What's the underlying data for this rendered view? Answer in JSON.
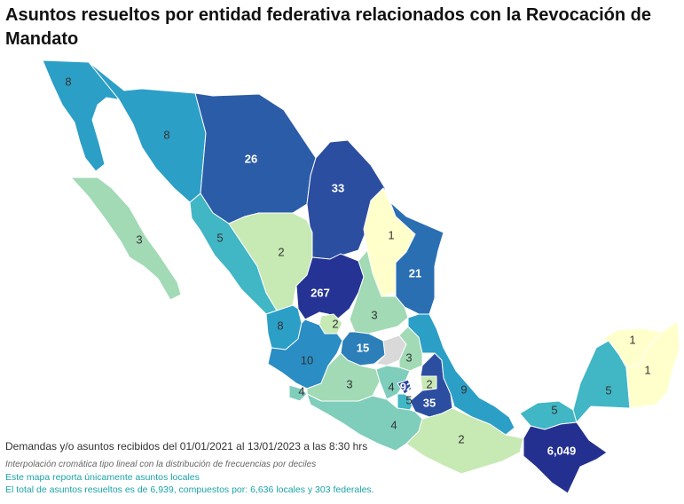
{
  "title": "Asuntos resueltos por entidad federativa relacionados con la Revocación de Mandato",
  "footer": {
    "period": "Demandas y/o asuntos recibidos del 01/01/2021 al 13/01/2023 a las 8:30 hrs",
    "method": "Interpolación cromática tipo lineal con la distribución de frecuencias por deciles",
    "scope": "Este mapa reporta únicamente asuntos locales",
    "total": "El total de asuntos resueltos es de 6,939, compuestos por: 6,636 locales y 303 federales."
  },
  "colors": {
    "c1": "#ffffcc",
    "c2": "#c7e9b4",
    "c3": "#a1dab4",
    "c4": "#7fcdbb",
    "c5": "#41b6c4",
    "c8": "#2c9fc7",
    "c10": "#2a8dc4",
    "c15": "#2c7fb8",
    "c21": "#2b6fb3",
    "c26": "#2b5ca8",
    "c33": "#2c4ea0",
    "c92": "#2a44a0",
    "c267": "#253494",
    "c6049": "#24308f",
    "nodata": "#d9d9d9"
  },
  "states": [
    {
      "id": "baja-california",
      "value": "8"
    },
    {
      "id": "sonora",
      "value": "8"
    },
    {
      "id": "chihuahua",
      "value": "26"
    },
    {
      "id": "coahuila",
      "value": "33"
    },
    {
      "id": "nuevo-leon",
      "value": "1"
    },
    {
      "id": "baja-california-sur",
      "value": "3"
    },
    {
      "id": "sinaloa",
      "value": "5"
    },
    {
      "id": "durango",
      "value": "2"
    },
    {
      "id": "tamaulipas",
      "value": "21"
    },
    {
      "id": "zacatecas",
      "value": "267"
    },
    {
      "id": "aguascalientes",
      "value": "2"
    },
    {
      "id": "san-luis-potosi",
      "value": "3"
    },
    {
      "id": "nayarit",
      "value": "8"
    },
    {
      "id": "jalisco",
      "value": "10"
    },
    {
      "id": "guanajuato",
      "value": "15"
    },
    {
      "id": "hidalgo",
      "value": "3"
    },
    {
      "id": "colima",
      "value": "4"
    },
    {
      "id": "michoacan",
      "value": "3"
    },
    {
      "id": "estado-de-mexico",
      "value": "4"
    },
    {
      "id": "cdmx",
      "value": "92"
    },
    {
      "id": "morelos",
      "value": "5"
    },
    {
      "id": "tlaxcala",
      "value": "2"
    },
    {
      "id": "puebla",
      "value": "35"
    },
    {
      "id": "veracruz",
      "value": "9"
    },
    {
      "id": "guerrero",
      "value": "4"
    },
    {
      "id": "oaxaca",
      "value": "2"
    },
    {
      "id": "tabasco",
      "value": "5"
    },
    {
      "id": "campeche",
      "value": "5"
    },
    {
      "id": "yucatan",
      "value": "1"
    },
    {
      "id": "quintana-roo",
      "value": "1"
    },
    {
      "id": "chiapas",
      "value": "6,049"
    }
  ]
}
